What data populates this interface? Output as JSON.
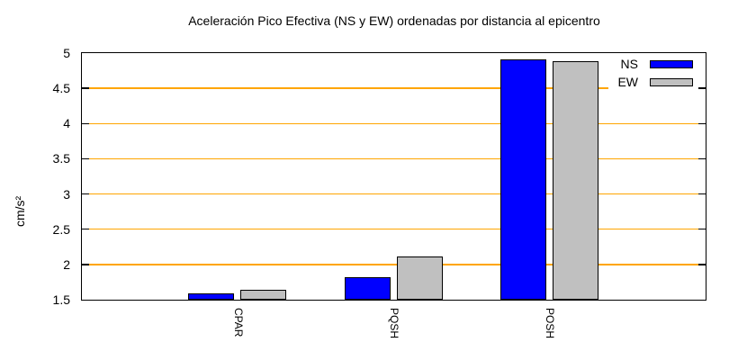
{
  "title": "Aceleración Pico Efectiva (NS y EW) ordenadas por distancia al epicentro",
  "chart_data": {
    "type": "bar",
    "title": "Aceleración Pico Efectiva (NS y EW) ordenadas por distancia al epicentro",
    "xlabel": "",
    "ylabel": "cm/s²",
    "categories": [
      "CPAR",
      "PQSH",
      "POSH"
    ],
    "series": [
      {
        "name": "NS",
        "color": "#0000ff",
        "values": [
          1.6,
          1.83,
          4.92
        ]
      },
      {
        "name": "EW",
        "color": "#c0c0c0",
        "values": [
          1.65,
          2.13,
          4.9
        ]
      }
    ],
    "ylim": [
      1.5,
      5
    ],
    "yticks": [
      1.5,
      2,
      2.5,
      3,
      3.5,
      4,
      4.5,
      5
    ],
    "grid": true,
    "grid_color": "#ffa500",
    "axis_color": "#000000",
    "legend_position": "top-right",
    "legend_entries": [
      "NS",
      "EW"
    ]
  }
}
